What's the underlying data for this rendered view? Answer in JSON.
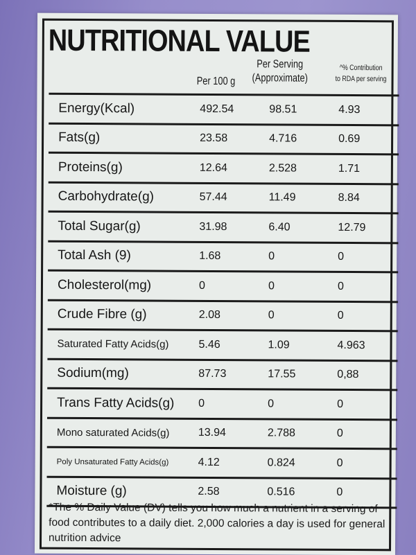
{
  "label": {
    "title": "NUTRITIONAL VALUE",
    "columns": {
      "per100": "Per 100 g",
      "perServing1": "Per Serving",
      "perServing2": "(Approximate)",
      "rda1": "^% Contribution",
      "rda2": "to RDA per serving"
    },
    "rows": [
      {
        "name": "Energy(Kcal)",
        "per100": "492.54",
        "serving": "98.51",
        "rda": "4.93"
      },
      {
        "name": "Fats(g)",
        "per100": "23.58",
        "serving": "4.716",
        "rda": "0.69"
      },
      {
        "name": "Proteins(g)",
        "per100": "12.64",
        "serving": "2.528",
        "rda": "1.71"
      },
      {
        "name": "Carbohydrate(g)",
        "per100": "57.44",
        "serving": "11.49",
        "rda": "8.84"
      },
      {
        "name": "Total Sugar(g)",
        "per100": "31.98",
        "serving": "6.40",
        "rda": "12.79"
      },
      {
        "name": "Total Ash (9)",
        "per100": "1.68",
        "serving": "0",
        "rda": "0"
      },
      {
        "name": "Cholesterol(mg)",
        "per100": "0",
        "serving": "0",
        "rda": "0"
      },
      {
        "name": "Crude Fibre (g)",
        "per100": "2.08",
        "serving": "0",
        "rda": "0"
      },
      {
        "name": "Saturated Fatty Acids(g)",
        "per100": "5.46",
        "serving": "1.09",
        "rda": "4.963"
      },
      {
        "name": "Sodium(mg)",
        "per100": "87.73",
        "serving": "17.55",
        "rda": "0,88"
      },
      {
        "name": "Trans Fatty Acids(g)",
        "per100": "0",
        "serving": "0",
        "rda": "0"
      },
      {
        "name": "Mono saturated Acids(g)",
        "per100": "13.94",
        "serving": "2.788",
        "rda": "0"
      },
      {
        "name": "Poly Unsaturated Fatty Acids(g)",
        "per100": "4.12",
        "serving": "0.824",
        "rda": "0"
      },
      {
        "name": "Moisture (g)",
        "per100": "2.58",
        "serving": "0.516",
        "rda": "0"
      }
    ],
    "footnote": "*The % Daily Value (DV) tells you how much a nutrient in a serving of food contributes to a daily diet. 2,000 calories a day is used for general nutrition advice"
  }
}
